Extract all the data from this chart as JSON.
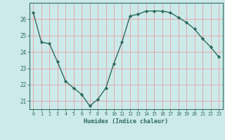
{
  "x": [
    0,
    1,
    2,
    3,
    4,
    5,
    6,
    7,
    8,
    9,
    10,
    11,
    12,
    13,
    14,
    15,
    16,
    17,
    18,
    19,
    20,
    21,
    22,
    23
  ],
  "y": [
    26.4,
    24.6,
    24.5,
    23.4,
    22.2,
    21.8,
    21.4,
    20.7,
    21.1,
    21.8,
    23.3,
    24.6,
    26.2,
    26.3,
    26.5,
    26.5,
    26.5,
    26.4,
    26.1,
    25.8,
    25.4,
    24.8,
    24.3,
    23.7
  ],
  "xlabel": "Humidex (Indice chaleur)",
  "ylim": [
    20.5,
    27.0
  ],
  "xlim": [
    -0.5,
    23.5
  ],
  "yticks": [
    21,
    22,
    23,
    24,
    25,
    26
  ],
  "xticks": [
    0,
    1,
    2,
    3,
    4,
    5,
    6,
    7,
    8,
    9,
    10,
    11,
    12,
    13,
    14,
    15,
    16,
    17,
    18,
    19,
    20,
    21,
    22,
    23
  ],
  "line_color": "#2e6b5e",
  "marker": "D",
  "marker_size": 2.2,
  "bg_color": "#cceaea",
  "grid_color": "#e8a0a0",
  "axis_color": "#2e6b5e",
  "tick_label_color": "#2e6b5e",
  "xlabel_color": "#2e6b5e",
  "line_width": 1.0
}
